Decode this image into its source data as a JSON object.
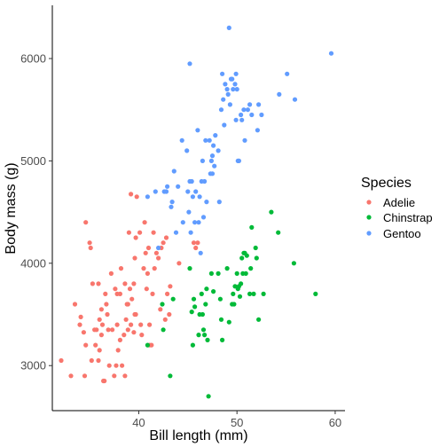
{
  "chart_data": {
    "type": "scatter",
    "xlabel": "Bill length (mm)",
    "ylabel": "Body mass (g)",
    "xlim": [
      31.2,
      61.0
    ],
    "ylim": [
      2560,
      6520
    ],
    "x_ticks": [
      40,
      50,
      60
    ],
    "y_ticks": [
      3000,
      4000,
      5000,
      6000
    ],
    "x_tick_labels": [
      "40",
      "50",
      "60"
    ],
    "y_tick_labels": [
      "3000",
      "4000",
      "5000",
      "6000"
    ],
    "grid": false,
    "legend": {
      "title": "Species",
      "position": "right"
    },
    "series": [
      {
        "name": "Adelie",
        "color": "#F8766D",
        "points": [
          [
            32.1,
            3050
          ],
          [
            33.1,
            2900
          ],
          [
            33.5,
            3600
          ],
          [
            34.0,
            3400
          ],
          [
            34.1,
            3475
          ],
          [
            34.4,
            3325
          ],
          [
            34.5,
            2900
          ],
          [
            34.6,
            4400
          ],
          [
            34.6,
            3200
          ],
          [
            35.0,
            4200
          ],
          [
            35.1,
            4150
          ],
          [
            35.2,
            3050
          ],
          [
            35.3,
            3800
          ],
          [
            35.5,
            3350
          ],
          [
            35.6,
            3200
          ],
          [
            35.7,
            3350
          ],
          [
            35.9,
            3800
          ],
          [
            35.9,
            3050
          ],
          [
            36.0,
            3450
          ],
          [
            36.0,
            3150
          ],
          [
            36.2,
            3550
          ],
          [
            36.2,
            3300
          ],
          [
            36.3,
            3400
          ],
          [
            36.4,
            2850
          ],
          [
            36.5,
            2850
          ],
          [
            36.6,
            3700
          ],
          [
            36.7,
            3600
          ],
          [
            36.8,
            3500
          ],
          [
            36.9,
            3350
          ],
          [
            37.0,
            3000
          ],
          [
            37.2,
            3900
          ],
          [
            37.3,
            3350
          ],
          [
            37.5,
            2900
          ],
          [
            37.6,
            3750
          ],
          [
            37.7,
            3000
          ],
          [
            37.8,
            3700
          ],
          [
            37.8,
            3400
          ],
          [
            37.9,
            3150
          ],
          [
            38.1,
            3700
          ],
          [
            38.1,
            3250
          ],
          [
            38.2,
            3950
          ],
          [
            38.3,
            3000
          ],
          [
            38.5,
            3300
          ],
          [
            38.6,
            3800
          ],
          [
            38.6,
            2900
          ],
          [
            38.7,
            3450
          ],
          [
            38.8,
            3600
          ],
          [
            38.9,
            3600
          ],
          [
            38.9,
            3350
          ],
          [
            39.0,
            4300
          ],
          [
            39.1,
            3750
          ],
          [
            39.2,
            4675
          ],
          [
            39.2,
            3400
          ],
          [
            39.3,
            3650
          ],
          [
            39.5,
            3800
          ],
          [
            39.5,
            3325
          ],
          [
            39.6,
            4050
          ],
          [
            39.6,
            3500
          ],
          [
            39.7,
            4250
          ],
          [
            39.7,
            3500
          ],
          [
            39.8,
            4650
          ],
          [
            40.1,
            4300
          ],
          [
            40.2,
            3400
          ],
          [
            40.3,
            3300
          ],
          [
            40.5,
            3950
          ],
          [
            40.6,
            4400
          ],
          [
            40.7,
            4100
          ],
          [
            40.8,
            3750
          ],
          [
            40.9,
            3900
          ],
          [
            41.0,
            4150
          ],
          [
            41.1,
            3400
          ],
          [
            41.1,
            3200
          ],
          [
            41.3,
            3200
          ],
          [
            41.4,
            3700
          ],
          [
            41.5,
            4300
          ],
          [
            41.6,
            3950
          ],
          [
            41.8,
            4100
          ],
          [
            42.0,
            4050
          ],
          [
            42.2,
            3550
          ],
          [
            42.3,
            4150
          ],
          [
            42.5,
            4200
          ],
          [
            42.7,
            3450
          ],
          [
            42.8,
            4250
          ],
          [
            42.9,
            3700
          ],
          [
            43.1,
            3500
          ],
          [
            43.2,
            3775
          ],
          [
            44.1,
            4000
          ],
          [
            45.6,
            4200
          ],
          [
            45.8,
            4150
          ],
          [
            46.0,
            4200
          ]
        ]
      },
      {
        "name": "Chinstrap",
        "color": "#00BA38",
        "points": [
          [
            40.9,
            3200
          ],
          [
            42.4,
            3600
          ],
          [
            42.5,
            3350
          ],
          [
            43.2,
            2900
          ],
          [
            43.5,
            3650
          ],
          [
            45.2,
            3950
          ],
          [
            45.4,
            3525
          ],
          [
            45.5,
            3200
          ],
          [
            45.6,
            3650
          ],
          [
            45.7,
            3575
          ],
          [
            46.1,
            3300
          ],
          [
            46.2,
            3500
          ],
          [
            46.4,
            3700
          ],
          [
            46.5,
            3500
          ],
          [
            46.6,
            3350
          ],
          [
            46.7,
            3300
          ],
          [
            46.8,
            3600
          ],
          [
            46.9,
            3750
          ],
          [
            47.0,
            3250
          ],
          [
            47.1,
            2700
          ],
          [
            47.4,
            3900
          ],
          [
            47.6,
            3725
          ],
          [
            48.1,
            3900
          ],
          [
            48.4,
            3450
          ],
          [
            48.5,
            3250
          ],
          [
            49.0,
            3950
          ],
          [
            49.2,
            3425
          ],
          [
            49.5,
            3600
          ],
          [
            49.6,
            3700
          ],
          [
            49.7,
            3600
          ],
          [
            49.8,
            3775
          ],
          [
            50.0,
            3900
          ],
          [
            50.1,
            3750
          ],
          [
            50.2,
            3775
          ],
          [
            50.3,
            3675
          ],
          [
            50.4,
            3800
          ],
          [
            50.5,
            4050
          ],
          [
            50.6,
            3900
          ],
          [
            50.7,
            4100
          ],
          [
            50.8,
            4100
          ],
          [
            50.9,
            3900
          ],
          [
            51.0,
            4075
          ],
          [
            51.3,
            3700
          ],
          [
            51.4,
            3950
          ],
          [
            51.5,
            4350
          ],
          [
            51.7,
            3700
          ],
          [
            51.9,
            4150
          ],
          [
            52.0,
            4050
          ],
          [
            52.2,
            3450
          ],
          [
            52.7,
            3700
          ],
          [
            53.5,
            4500
          ],
          [
            54.2,
            4300
          ],
          [
            55.8,
            4000
          ],
          [
            58.0,
            3700
          ],
          [
            48.3,
            3650
          ]
        ]
      },
      {
        "name": "Gentoo",
        "color": "#619CFF",
        "points": [
          [
            40.9,
            4650
          ],
          [
            41.7,
            4700
          ],
          [
            42.0,
            4150
          ],
          [
            42.6,
            4700
          ],
          [
            42.8,
            4700
          ],
          [
            42.9,
            4750
          ],
          [
            43.3,
            4550
          ],
          [
            43.4,
            4600
          ],
          [
            43.6,
            4900
          ],
          [
            43.8,
            4300
          ],
          [
            44.0,
            4750
          ],
          [
            44.4,
            5200
          ],
          [
            44.5,
            4400
          ],
          [
            44.9,
            5100
          ],
          [
            45.0,
            4700
          ],
          [
            45.1,
            4500
          ],
          [
            45.2,
            4800
          ],
          [
            45.3,
            4300
          ],
          [
            45.4,
            4800
          ],
          [
            45.5,
            4650
          ],
          [
            45.7,
            4400
          ],
          [
            45.8,
            4700
          ],
          [
            46.1,
            4400
          ],
          [
            46.2,
            4650
          ],
          [
            46.3,
            4100
          ],
          [
            46.4,
            4800
          ],
          [
            46.5,
            5000
          ],
          [
            46.6,
            4450
          ],
          [
            46.7,
            4800
          ],
          [
            46.8,
            5200
          ],
          [
            46.9,
            4600
          ],
          [
            47.2,
            5200
          ],
          [
            47.3,
            4875
          ],
          [
            47.4,
            5000
          ],
          [
            47.5,
            4875
          ],
          [
            47.6,
            5150
          ],
          [
            47.7,
            4950
          ],
          [
            47.8,
            5250
          ],
          [
            48.1,
            5100
          ],
          [
            48.2,
            4600
          ],
          [
            48.4,
            5500
          ],
          [
            48.5,
            5850
          ],
          [
            48.6,
            5600
          ],
          [
            48.7,
            5350
          ],
          [
            48.8,
            5750
          ],
          [
            49.0,
            5700
          ],
          [
            49.1,
            5650
          ],
          [
            49.2,
            6300
          ],
          [
            49.3,
            5550
          ],
          [
            49.4,
            5800
          ],
          [
            49.5,
            5800
          ],
          [
            49.6,
            5700
          ],
          [
            49.8,
            5750
          ],
          [
            49.9,
            5400
          ],
          [
            50.0,
            5700
          ],
          [
            50.1,
            5000
          ],
          [
            50.2,
            5000
          ],
          [
            50.4,
            5450
          ],
          [
            50.5,
            5400
          ],
          [
            50.7,
            5500
          ],
          [
            50.8,
            5200
          ],
          [
            51.1,
            5500
          ],
          [
            51.3,
            5550
          ],
          [
            51.5,
            5450
          ],
          [
            52.1,
            5300
          ],
          [
            52.2,
            5550
          ],
          [
            52.5,
            5450
          ],
          [
            54.3,
            5650
          ],
          [
            55.1,
            5850
          ],
          [
            55.9,
            5600
          ],
          [
            59.6,
            6050
          ],
          [
            45.2,
            5950
          ],
          [
            46.0,
            5300
          ],
          [
            47.5,
            5050
          ],
          [
            49.9,
            5850
          ]
        ]
      }
    ]
  }
}
